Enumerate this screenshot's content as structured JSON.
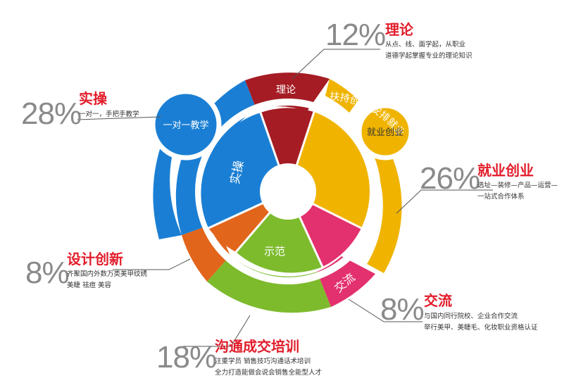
{
  "center": {
    "segments": [
      {
        "label": "理论",
        "color": "#a51c24"
      },
      {
        "label": "扶持创业 安排就业",
        "color": "#f0b400"
      },
      {
        "label": "交流",
        "color": "#e3306e"
      },
      {
        "label": "示范",
        "color": "#7dbb2d"
      },
      {
        "label": "实操",
        "color": "#1a7fd4"
      }
    ],
    "outer_labels": {
      "theory": "理论",
      "exchange": "交流"
    },
    "bubbles": {
      "one_on_one": "一对一教学",
      "employment": "就业创业"
    }
  },
  "callouts": [
    {
      "key": "theory",
      "percent": "12%",
      "title": "理论",
      "lines": [
        "从点、线、面学起，从职业",
        "道德学起掌握专业的理论知识"
      ]
    },
    {
      "key": "practice",
      "percent": "28%",
      "title": "实操",
      "lines": [
        "一对一，手把手教学"
      ]
    },
    {
      "key": "employment",
      "percent": "26%",
      "title": "就业创业",
      "lines": [
        "选址—装修—产品—运营—",
        "一站式合作体系"
      ]
    },
    {
      "key": "design",
      "percent": "8%",
      "title": "设计创新",
      "lines": [
        "齐聚国内外数万类美甲纹绣",
        "美睫 祛痘 美容"
      ]
    },
    {
      "key": "exchange",
      "percent": "8%",
      "title": "交流",
      "lines": [
        "与国内同行院校、企业合作交流",
        "举行美甲、美睫毛、化妆职业资格认证"
      ]
    },
    {
      "key": "sales",
      "percent": "18%",
      "title": "沟通成交培训",
      "lines": [
        "注重学员 销售技巧沟通话术培训",
        "全力打造能做会说会销售全能型人才"
      ]
    }
  ],
  "colors": {
    "blue": "#1a7fd4",
    "red": "#a51c24",
    "yellow": "#f0b400",
    "pink": "#e3306e",
    "green": "#7dbb2d",
    "orange": "#e2651c",
    "title_red": "#e21d2b",
    "gray": "#8a8a8a"
  }
}
